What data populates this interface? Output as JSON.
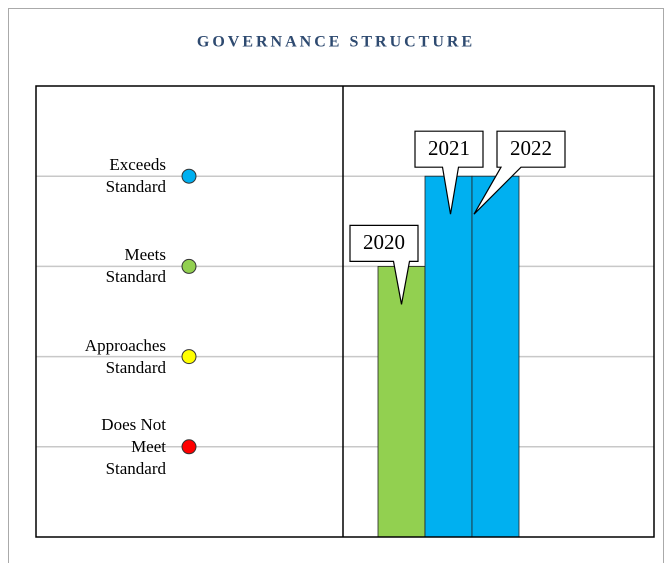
{
  "chart_data": {
    "type": "bar",
    "title": "GOVERNANCE STRUCTURE",
    "categories": [
      "2020",
      "2021",
      "2022"
    ],
    "values": [
      3,
      4,
      4
    ],
    "colors": [
      "#92d050",
      "#00b0f0",
      "#00b0f0"
    ],
    "ylim": [
      0,
      5
    ],
    "yticks": [
      {
        "value": 1,
        "label": "Does Not Meet Standard"
      },
      {
        "value": 2,
        "label": "Approaches Standard"
      },
      {
        "value": 3,
        "label": "Meets Standard"
      },
      {
        "value": 4,
        "label": "Exceeds Standard"
      }
    ],
    "ytick_colors": [
      "#ff0000",
      "#ffff00",
      "#92d050",
      "#00b0f0"
    ],
    "grid": true
  }
}
